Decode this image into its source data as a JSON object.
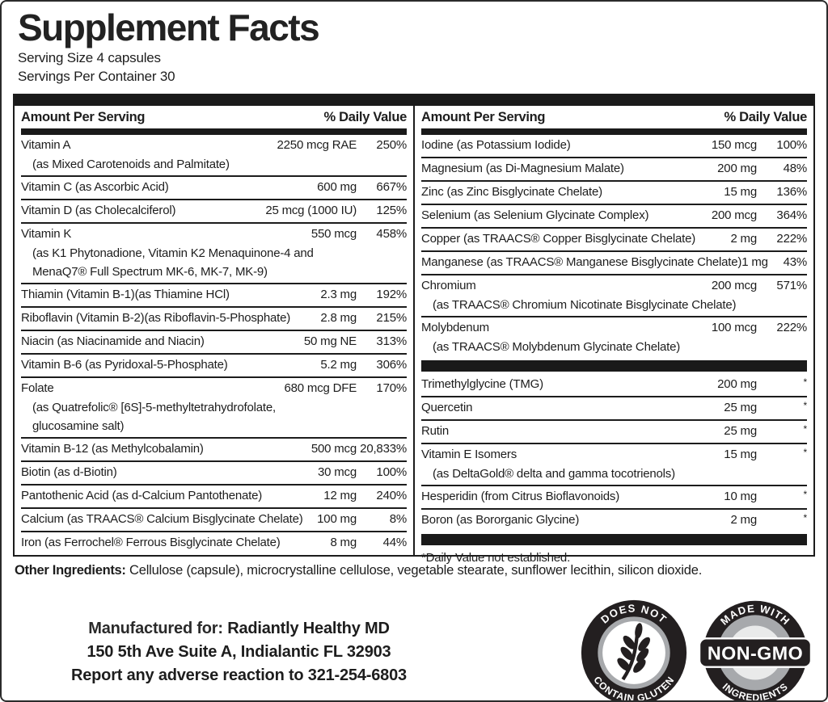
{
  "header": {
    "title": "Supplement Facts",
    "serving_size": "Serving Size 4 capsules",
    "servings_per_container": "Servings Per Container 30"
  },
  "table": {
    "col_header_amount": "Amount Per Serving",
    "col_header_dv": "% Daily Value",
    "footnote": "*Daily Value not established.",
    "left_sections": [
      {
        "rows": [
          {
            "name": "Vitamin A",
            "amount": "2250 mcg RAE",
            "dv": "250%",
            "subs": [
              "(as Mixed Carotenoids and Palmitate)"
            ]
          },
          {
            "name": "Vitamin C (as Ascorbic Acid)",
            "amount": "600 mg",
            "dv": "667%"
          },
          {
            "name": "Vitamin D (as Cholecalciferol)",
            "amount": "25 mcg (1000 IU)",
            "dv": "125%"
          },
          {
            "name": "Vitamin K",
            "amount": "550 mcg",
            "dv": "458%",
            "subs": [
              "(as K1 Phytonadione, Vitamin K2 Menaquinone-4 and",
              "MenaQ7® Full Spectrum MK-6, MK-7, MK-9)"
            ]
          },
          {
            "name": "Thiamin (Vitamin B-1)(as Thiamine HCl)",
            "amount": "2.3 mg",
            "dv": "192%"
          },
          {
            "name": "Riboflavin (Vitamin B-2)(as Riboflavin-5-Phosphate)",
            "amount": "2.8 mg",
            "dv": "215%"
          },
          {
            "name": "Niacin (as Niacinamide and Niacin)",
            "amount": "50 mg NE",
            "dv": "313%"
          },
          {
            "name": "Vitamin B-6 (as Pyridoxal-5-Phosphate)",
            "amount": "5.2 mg",
            "dv": "306%"
          },
          {
            "name": "Folate",
            "amount": "680 mcg DFE",
            "dv": "170%",
            "subs": [
              "(as Quatrefolic® [6S]-5-methyltetrahydrofolate,",
              "glucosamine salt)"
            ]
          },
          {
            "name": "Vitamin B-12 (as Methylcobalamin)",
            "amount": "500 mcg",
            "dv": "20,833%"
          },
          {
            "name": "Biotin (as d-Biotin)",
            "amount": "30 mcg",
            "dv": "100%"
          },
          {
            "name": "Pantothenic Acid (as d-Calcium Pantothenate)",
            "amount": "12 mg",
            "dv": "240%"
          },
          {
            "name": "Calcium (as TRAACS® Calcium Bisglycinate Chelate)",
            "amount": "100 mg",
            "dv": "8%"
          },
          {
            "name": "Iron (as Ferrochel® Ferrous Bisglycinate Chelate)",
            "amount": "8 mg",
            "dv": "44%"
          }
        ]
      }
    ],
    "right_sections": [
      {
        "rows": [
          {
            "name": "Iodine (as Potassium Iodide)",
            "amount": "150 mcg",
            "dv": "100%"
          },
          {
            "name": "Magnesium (as Di-Magnesium Malate)",
            "amount": "200 mg",
            "dv": "48%"
          },
          {
            "name": "Zinc (as Zinc Bisglycinate Chelate)",
            "amount": "15 mg",
            "dv": "136%"
          },
          {
            "name": "Selenium (as Selenium Glycinate Complex)",
            "amount": "200 mcg",
            "dv": "364%"
          },
          {
            "name": "Copper (as TRAACS® Copper Bisglycinate Chelate)",
            "amount": "2 mg",
            "dv": "222%"
          },
          {
            "name": "Manganese (as TRAACS® Manganese Bisglycinate Chelate)",
            "amount": "1 mg",
            "dv": "43%"
          },
          {
            "name": "Chromium",
            "amount": "200 mcg",
            "dv": "571%",
            "subs": [
              "(as TRAACS® Chromium Nicotinate Bisglycinate Chelate)"
            ]
          },
          {
            "name": "Molybdenum",
            "amount": "100 mcg",
            "dv": "222%",
            "subs": [
              "(as TRAACS® Molybdenum Glycinate Chelate)"
            ]
          }
        ]
      },
      {
        "rows": [
          {
            "name": "Trimethylglycine (TMG)",
            "amount": "200 mg",
            "dv": "*"
          },
          {
            "name": "Quercetin",
            "amount": "25 mg",
            "dv": "*"
          },
          {
            "name": "Rutin",
            "amount": "25 mg",
            "dv": "*"
          },
          {
            "name": "Vitamin E Isomers",
            "amount": "15 mg",
            "dv": "*",
            "subs": [
              "(as DeltaGold® delta and gamma tocotrienols)"
            ]
          },
          {
            "name": "Hesperidin (from Citrus Bioflavonoids)",
            "amount": "10 mg",
            "dv": "*"
          },
          {
            "name": "Boron (as Bororganic Glycine)",
            "amount": "2 mg",
            "dv": "*"
          }
        ]
      }
    ]
  },
  "other_ingredients": {
    "label": "Other Ingredients:",
    "text": "Cellulose (capsule), microcrystalline cellulose, vegetable stearate, sunflower lecithin, silicon dioxide."
  },
  "footer": {
    "manufactured_label": "Manufactured for:",
    "manufactured_name": "Radiantly Healthy MD",
    "address": "150 5th Ave Suite A, Indialantic FL 32903",
    "report": "Report any adverse reaction to 321-254-6803"
  },
  "badges": {
    "gluten_free": {
      "top_text": "DOES NOT",
      "bottom_text": "CONTAIN GLUTEN",
      "icon": "wheat-icon"
    },
    "non_gmo": {
      "top_text": "MADE WITH",
      "band_text": "NON-GMO",
      "bottom_text": "INGREDIENTS"
    }
  },
  "colors": {
    "ink": "#1d1d1d",
    "badge_black": "#231f20",
    "badge_gray": "#a7a9ac"
  }
}
